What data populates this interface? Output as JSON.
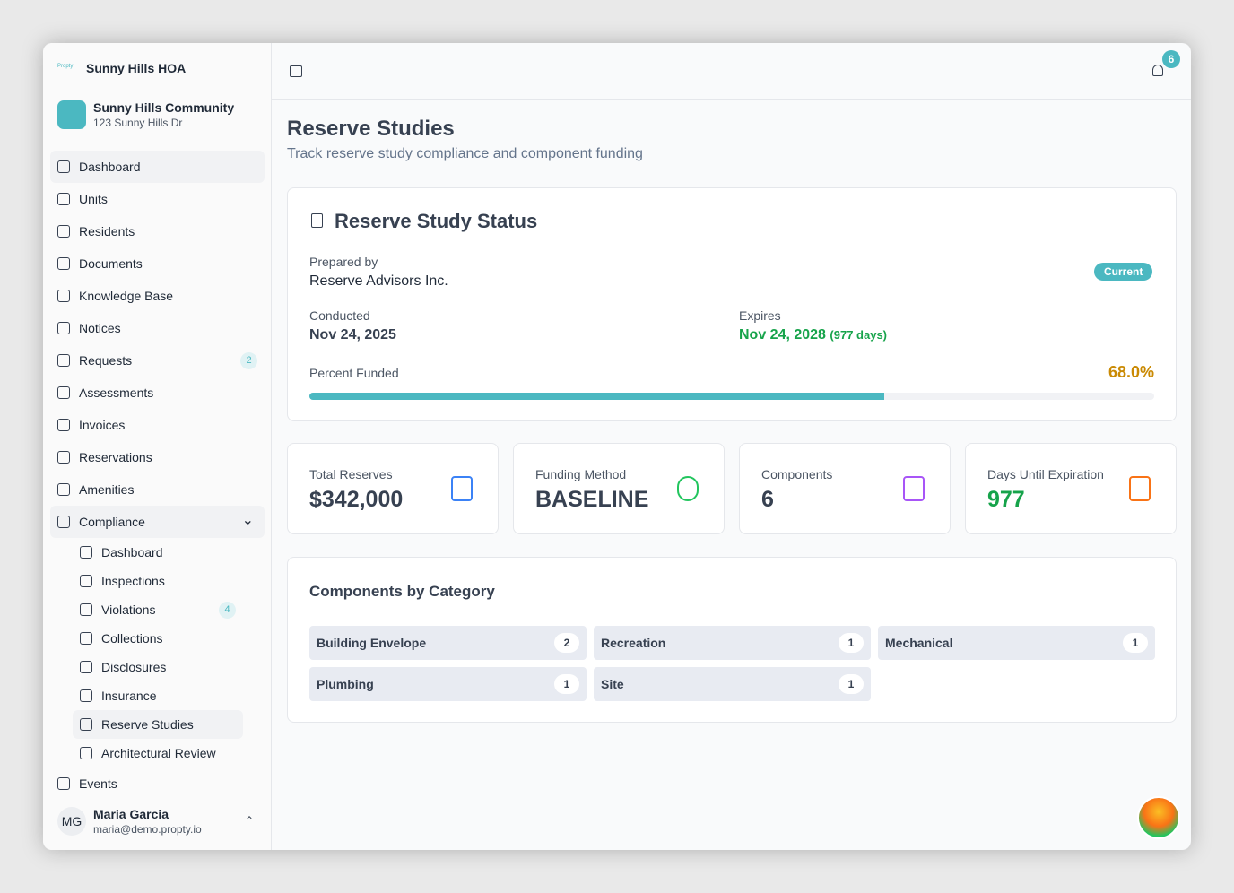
{
  "sidebar": {
    "logo_text": "Propty",
    "org": "Sunny Hills HOA",
    "community": {
      "name": "Sunny Hills Community",
      "address": "123 Sunny Hills Dr"
    },
    "nav": [
      {
        "label": "Dashboard"
      },
      {
        "label": "Units"
      },
      {
        "label": "Residents"
      },
      {
        "label": "Documents"
      },
      {
        "label": "Knowledge Base"
      },
      {
        "label": "Notices"
      },
      {
        "label": "Requests",
        "badge": 2
      },
      {
        "label": "Assessments"
      },
      {
        "label": "Invoices"
      },
      {
        "label": "Reservations"
      },
      {
        "label": "Amenities"
      },
      {
        "label": "Compliance",
        "children": [
          {
            "label": "Dashboard"
          },
          {
            "label": "Inspections"
          },
          {
            "label": "Violations",
            "badge": 4
          },
          {
            "label": "Collections"
          },
          {
            "label": "Disclosures"
          },
          {
            "label": "Insurance"
          },
          {
            "label": "Reserve Studies"
          },
          {
            "label": "Architectural Review"
          }
        ]
      },
      {
        "label": "Events"
      }
    ],
    "user": {
      "initials": "MG",
      "name": "Maria Garcia",
      "email": "maria@demo.propty.io"
    }
  },
  "header": {
    "notification_count": 6
  },
  "page": {
    "title": "Reserve Studies",
    "subtitle": "Track reserve study compliance and component funding"
  },
  "status_card": {
    "title": "Reserve Study Status",
    "prepared_by_label": "Prepared by",
    "prepared_by": "Reserve Advisors Inc.",
    "status": "Current",
    "conducted_label": "Conducted",
    "conducted": "Nov 24, 2025",
    "expires_label": "Expires",
    "expires": "Nov 24, 2028",
    "expires_days": "(977 days)",
    "percent_funded_label": "Percent Funded",
    "percent_funded": {
      "value": 68,
      "label": "68.0%"
    }
  },
  "stats": [
    {
      "label": "Total Reserves",
      "value": "$342,000"
    },
    {
      "label": "Funding Method",
      "value": "BASELINE"
    },
    {
      "label": "Components",
      "value": 6
    },
    {
      "label": "Days Until Expiration",
      "value": 977
    }
  ],
  "categories": {
    "title": "Components by Category",
    "items": [
      {
        "name": "Building Envelope",
        "count": 2
      },
      {
        "name": "Recreation",
        "count": 1
      },
      {
        "name": "Mechanical",
        "count": 1
      },
      {
        "name": "Plumbing",
        "count": 1
      },
      {
        "name": "Site",
        "count": 1
      }
    ]
  }
}
